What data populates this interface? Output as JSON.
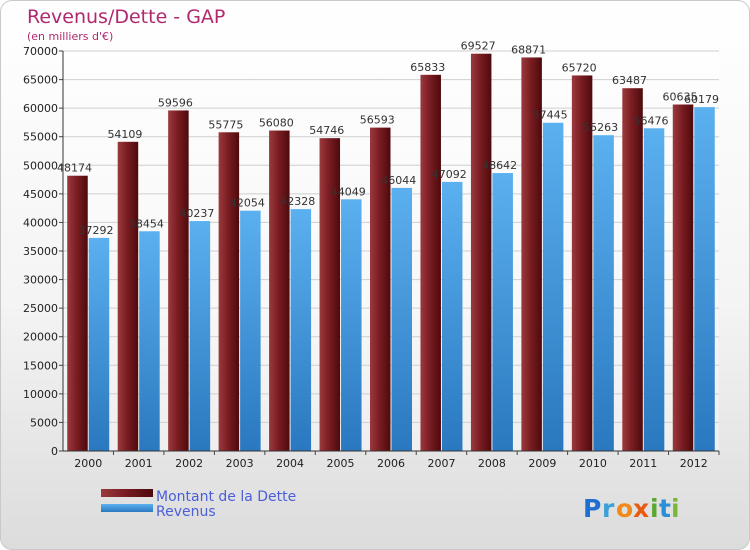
{
  "chart_data": {
    "type": "bar",
    "title": "Revenus/Dette - GAP",
    "subtitle": "(en milliers d'€)",
    "categories": [
      "2000",
      "2001",
      "2002",
      "2003",
      "2004",
      "2005",
      "2006",
      "2007",
      "2008",
      "2009",
      "2010",
      "2011",
      "2012"
    ],
    "series": [
      {
        "name": "Montant de la Dette",
        "color": "#6b1416",
        "values": [
          48174,
          54109,
          59596,
          55775,
          56080,
          54746,
          56593,
          65833,
          69527,
          68871,
          65720,
          63487,
          60635
        ]
      },
      {
        "name": "Revenus",
        "color": "#4a9fe0",
        "values": [
          37292,
          38454,
          40237,
          42054,
          42328,
          44049,
          46044,
          47092,
          48642,
          57445,
          55263,
          56476,
          60179
        ]
      }
    ],
    "ylim": [
      0,
      70000
    ],
    "yticks": [
      0,
      5000,
      10000,
      15000,
      20000,
      25000,
      30000,
      35000,
      40000,
      45000,
      50000,
      55000,
      60000,
      65000,
      70000
    ],
    "grid": true,
    "legend_position": "bottom-left"
  },
  "logo": {
    "text": "Proxiti"
  }
}
